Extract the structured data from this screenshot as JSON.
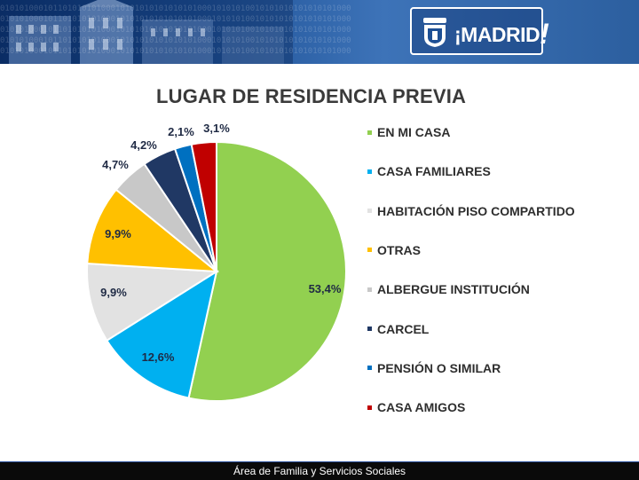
{
  "header": {
    "binary_pattern": "0101010001011010101010001010101010101010100010101010010101010101010101000",
    "brand": "¡MADRID",
    "brand_end": "!"
  },
  "footer": {
    "text": "Área de Familia y Servicios Sociales"
  },
  "chart_data": {
    "type": "pie",
    "title": "LUGAR DE RESIDENCIA PREVIA",
    "slices": [
      {
        "label": "EN MI CASA",
        "value": 53.4,
        "display": "53,4%",
        "color": "#92d050"
      },
      {
        "label": "CASA FAMILIARES",
        "value": 12.6,
        "display": "12,6%",
        "color": "#00b0f0"
      },
      {
        "label": "HABITACIÓN PISO COMPARTIDO",
        "value": 9.9,
        "display": "9,9%",
        "color": "#e2e2e2"
      },
      {
        "label": "OTRAS",
        "value": 9.9,
        "display": "9,9%",
        "color": "#ffc000"
      },
      {
        "label": "ALBERGUE INSTITUCIÓN",
        "value": 4.7,
        "display": "4,7%",
        "color": "#c8c8c8"
      },
      {
        "label": "CARCEL",
        "value": 4.2,
        "display": "4,2%",
        "color": "#203864"
      },
      {
        "label": "PENSIÓN O SIMILAR",
        "value": 2.1,
        "display": "2,1%",
        "color": "#0070c0"
      },
      {
        "label": "CASA AMIGOS",
        "value": 3.1,
        "display": "3,1%",
        "color": "#c00000"
      }
    ],
    "legend_position": "right"
  }
}
